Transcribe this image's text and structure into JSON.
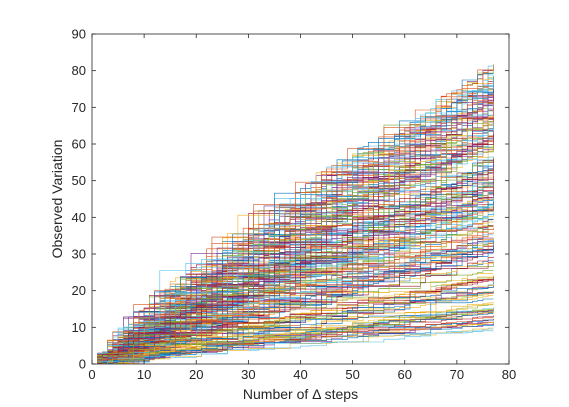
{
  "chart_data": {
    "type": "line",
    "title": "",
    "xlabel": "Number of Δ steps",
    "ylabel": "Observed Variation",
    "xlim": [
      0,
      80
    ],
    "ylim": [
      0,
      90
    ],
    "xticks": [
      0,
      10,
      20,
      30,
      40,
      50,
      60,
      70,
      80
    ],
    "yticks": [
      0,
      10,
      20,
      30,
      40,
      50,
      60,
      70,
      80,
      90
    ],
    "grid": false,
    "legend": "none",
    "line_style": "step",
    "series_count": 220,
    "x_start": 1,
    "x_end": 77,
    "final_value_range": [
      9,
      82
    ],
    "upper_envelope": {
      "x": [
        1,
        5,
        10,
        15,
        20,
        25,
        30,
        35,
        40,
        45,
        50,
        55,
        60,
        65,
        70,
        75,
        77
      ],
      "y": [
        0,
        13,
        21,
        29,
        35,
        37,
        45,
        55,
        60,
        64,
        67,
        68,
        70,
        73,
        77,
        81,
        82
      ]
    },
    "colors": [
      "#0072bd",
      "#d95319",
      "#edb120",
      "#7e2f8e",
      "#77ac30",
      "#4dbeee",
      "#a2142f"
    ]
  }
}
